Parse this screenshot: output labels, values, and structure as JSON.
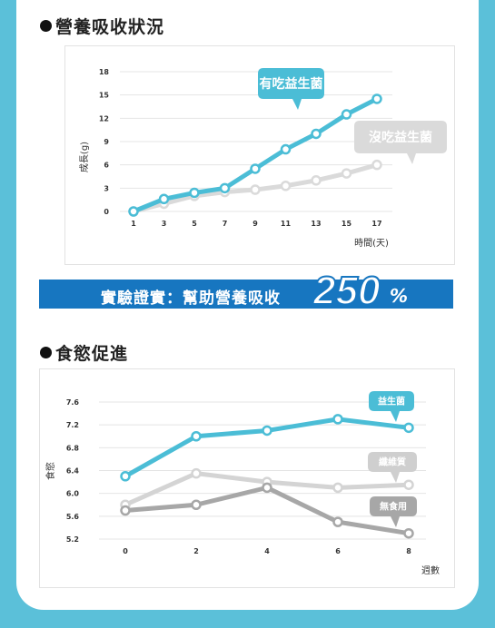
{
  "section1": {
    "title": "營養吸收狀況"
  },
  "section2": {
    "title": "食慾促進"
  },
  "banner": {
    "text": "實驗證實：幫助營養吸收",
    "big": "250",
    "pct": "%"
  },
  "colors": {
    "teal": "#4bbdd6",
    "light_gray": "#dadada",
    "mid_gray": "#d4d4d4",
    "dark_gray": "#a7a7a7",
    "banner_blue": "#1776c0"
  },
  "chart_data": [
    {
      "type": "line",
      "ylabel": "成長(g)",
      "xlabel": "時間(天)",
      "x": [
        1,
        3,
        5,
        7,
        9,
        11,
        13,
        15,
        17
      ],
      "yticks": [
        0,
        3,
        6,
        9,
        12,
        15,
        18
      ],
      "ylim": [
        0,
        18
      ],
      "grid": true,
      "series": [
        {
          "name": "有吃益生菌",
          "values": [
            0,
            1.6,
            2.4,
            3.0,
            5.5,
            8.0,
            10.0,
            12.5,
            14.5
          ]
        },
        {
          "name": "沒吃益生菌",
          "values": [
            0,
            1.0,
            2.0,
            2.5,
            2.8,
            3.3,
            4.0,
            4.9,
            6.0
          ]
        }
      ]
    },
    {
      "type": "line",
      "ylabel": "食慾",
      "xlabel": "週數",
      "x": [
        0,
        2,
        4,
        6,
        8
      ],
      "yticks": [
        "7.6",
        "7.2",
        "6.8",
        "6.4",
        "6.0",
        "5.6",
        "5.2"
      ],
      "ylim": [
        5.2,
        7.6
      ],
      "grid": true,
      "series": [
        {
          "name": "益生菌",
          "values": [
            6.3,
            7.0,
            7.1,
            7.3,
            7.15
          ]
        },
        {
          "name": "纖維質",
          "values": [
            5.8,
            6.35,
            6.2,
            6.1,
            6.15
          ]
        },
        {
          "name": "無食用",
          "values": [
            5.7,
            5.8,
            6.1,
            5.5,
            5.3
          ]
        }
      ]
    }
  ]
}
